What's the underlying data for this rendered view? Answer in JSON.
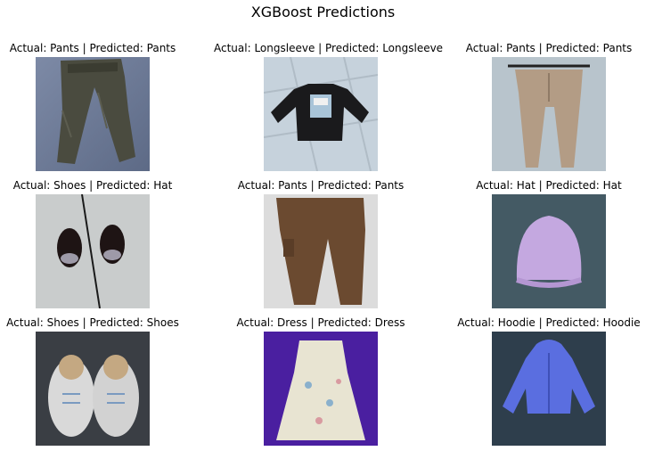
{
  "figure": {
    "title": "XGBoost Predictions"
  },
  "panels": [
    {
      "actual": "Pants",
      "predicted": "Pants",
      "caption": "Actual: Pants | Predicted: Pants",
      "icon": "pants-photo"
    },
    {
      "actual": "Longsleeve",
      "predicted": "Longsleeve",
      "caption": "Actual: Longsleeve | Predicted: Longsleeve",
      "icon": "longsleeve-photo"
    },
    {
      "actual": "Pants",
      "predicted": "Pants",
      "caption": "Actual: Pants | Predicted: Pants",
      "icon": "pants-photo"
    },
    {
      "actual": "Shoes",
      "predicted": "Hat",
      "caption": "Actual: Shoes | Predicted: Hat",
      "icon": "shoes-photo"
    },
    {
      "actual": "Pants",
      "predicted": "Pants",
      "caption": "Actual: Pants | Predicted: Pants",
      "icon": "pants-photo"
    },
    {
      "actual": "Hat",
      "predicted": "Hat",
      "caption": "Actual: Hat | Predicted: Hat",
      "icon": "hat-photo"
    },
    {
      "actual": "Shoes",
      "predicted": "Shoes",
      "caption": "Actual: Shoes | Predicted: Shoes",
      "icon": "shoes-photo"
    },
    {
      "actual": "Dress",
      "predicted": "Dress",
      "caption": "Actual: Dress | Predicted: Dress",
      "icon": "dress-photo"
    },
    {
      "actual": "Hoodie",
      "predicted": "Hoodie",
      "caption": "Actual: Hoodie | Predicted: Hoodie",
      "icon": "hoodie-photo"
    }
  ]
}
